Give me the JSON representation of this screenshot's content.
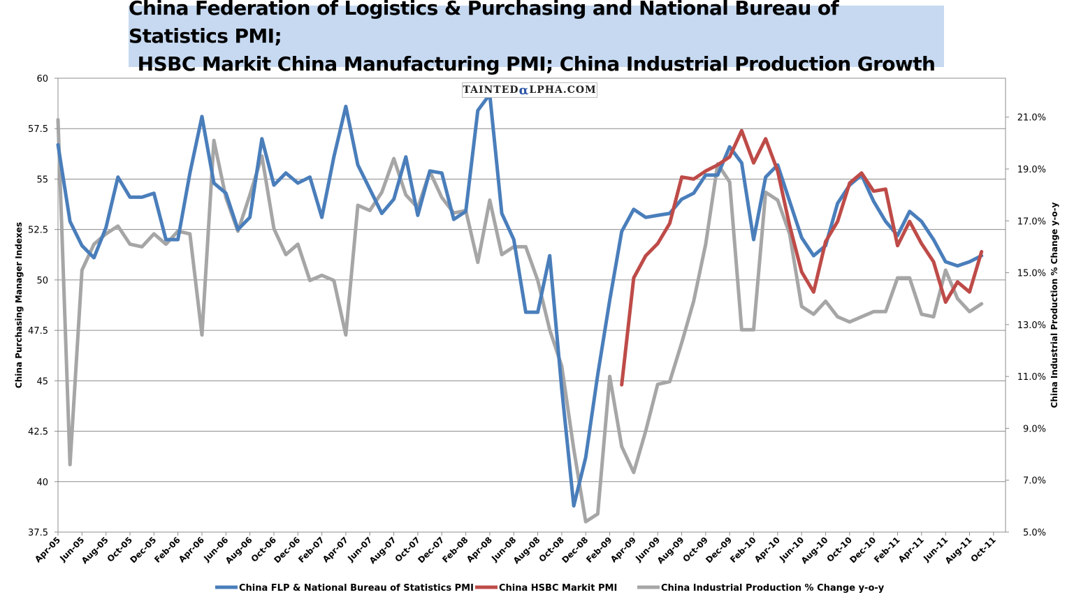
{
  "title_lines": [
    "China Federation of Logistics & Purchasing and National Bureau of Statistics PMI;",
    "HSBC Markit China Manufacturing PMI; China Industrial Production Growth"
  ],
  "watermark": {
    "prefix": "TAINTED",
    "alpha": "α",
    "suffix": "LPHA.COM"
  },
  "chart_data": {
    "type": "line",
    "title": "China Federation of Logistics & Purchasing and National Bureau of Statistics PMI; HSBC Markit China Manufacturing PMI; China Industrial Production Growth",
    "ylabel": "China Purchasing Manager Indexes",
    "y2label": "China Industrial Production % Change y-o-y",
    "ylim": [
      37.5,
      60
    ],
    "y2lim": [
      5.0,
      22.5
    ],
    "yticks": [
      "37.5",
      "40",
      "42.5",
      "45",
      "47.5",
      "50",
      "52.5",
      "55",
      "57.5",
      "60"
    ],
    "y2ticks": [
      "5.0%",
      "7.0%",
      "9.0%",
      "11.0%",
      "13.0%",
      "15.0%",
      "17.0%",
      "19.0%",
      "21.0%"
    ],
    "months": [
      "Apr-05",
      "May-05",
      "Jun-05",
      "Jul-05",
      "Aug-05",
      "Sep-05",
      "Oct-05",
      "Nov-05",
      "Dec-05",
      "Jan-06",
      "Feb-06",
      "Mar-06",
      "Apr-06",
      "May-06",
      "Jun-06",
      "Jul-06",
      "Aug-06",
      "Sep-06",
      "Oct-06",
      "Nov-06",
      "Dec-06",
      "Jan-07",
      "Feb-07",
      "Mar-07",
      "Apr-07",
      "May-07",
      "Jun-07",
      "Jul-07",
      "Aug-07",
      "Sep-07",
      "Oct-07",
      "Nov-07",
      "Dec-07",
      "Jan-08",
      "Feb-08",
      "Mar-08",
      "Apr-08",
      "May-08",
      "Jun-08",
      "Jul-08",
      "Aug-08",
      "Sep-08",
      "Oct-08",
      "Nov-08",
      "Dec-08",
      "Jan-09",
      "Feb-09",
      "Mar-09",
      "Apr-09",
      "May-09",
      "Jun-09",
      "Jul-09",
      "Aug-09",
      "Sep-09",
      "Oct-09",
      "Nov-09",
      "Dec-09",
      "Jan-10",
      "Feb-10",
      "Mar-10",
      "Apr-10",
      "May-10",
      "Jun-10",
      "Jul-10",
      "Aug-10",
      "Sep-10",
      "Oct-10",
      "Nov-10",
      "Dec-10",
      "Jan-11",
      "Feb-11",
      "Mar-11",
      "Apr-11",
      "May-11",
      "Jun-11",
      "Jul-11",
      "Aug-11",
      "Sep-11",
      "Oct-11",
      "Nov-11"
    ],
    "xtick_labels": [
      "Apr-05",
      "Jun-05",
      "Aug-05",
      "Oct-05",
      "Dec-05",
      "Feb-06",
      "Apr-06",
      "Jun-06",
      "Aug-06",
      "Oct-06",
      "Dec-06",
      "Feb-07",
      "Apr-07",
      "Jun-07",
      "Aug-07",
      "Oct-07",
      "Dec-07",
      "Feb-08",
      "Apr-08",
      "Jun-08",
      "Aug-08",
      "Oct-08",
      "Dec-08",
      "Feb-09",
      "Apr-09",
      "Jun-09",
      "Aug-09",
      "Oct-09",
      "Dec-09",
      "Feb-10",
      "Apr-10",
      "Jun-10",
      "Aug-10",
      "Oct-10",
      "Dec-10",
      "Feb-11",
      "Apr-11",
      "Jun-11",
      "Aug-11",
      "Oct-11"
    ],
    "grid": "horizontal",
    "legend_position": "bottom",
    "series": [
      {
        "name": "China FLP & National Bureau of Statistics PMI",
        "color": "#4a7ebb",
        "axis": "left",
        "start": "Apr-05",
        "values": [
          56.7,
          52.9,
          51.7,
          51.1,
          52.6,
          55.1,
          54.1,
          54.1,
          54.3,
          52.0,
          52.0,
          55.3,
          58.1,
          54.8,
          54.3,
          52.5,
          53.1,
          57.0,
          54.7,
          55.3,
          54.8,
          55.1,
          53.1,
          56.1,
          58.6,
          55.7,
          54.5,
          53.3,
          54.0,
          56.1,
          53.2,
          55.4,
          55.3,
          53.0,
          53.4,
          58.4,
          59.2,
          53.3,
          52.0,
          48.4,
          48.4,
          51.2,
          44.6,
          38.8,
          41.2,
          45.3,
          49.0,
          52.4,
          53.5,
          53.1,
          53.2,
          53.3,
          54.0,
          54.3,
          55.2,
          55.2,
          56.6,
          55.8,
          52.0,
          55.1,
          55.7,
          53.9,
          52.1,
          51.2,
          51.7,
          53.8,
          54.7,
          55.2,
          53.9,
          52.9,
          52.2,
          53.4,
          52.9,
          52.0,
          50.9,
          50.7,
          50.9,
          51.2
        ]
      },
      {
        "name": "China HSBC  Markit PMI",
        "color": "#be4b48",
        "axis": "left",
        "start": "Mar-09",
        "values": [
          44.8,
          50.1,
          51.2,
          51.8,
          52.8,
          55.1,
          55.0,
          55.4,
          55.7,
          56.1,
          57.4,
          55.8,
          57.0,
          55.4,
          52.7,
          50.4,
          49.4,
          51.9,
          52.9,
          54.8,
          55.3,
          54.4,
          54.5,
          51.7,
          52.9,
          51.8,
          50.9,
          48.9,
          49.9,
          49.4,
          51.4
        ]
      },
      {
        "name": "China Industrial Production % Change y-o-y",
        "color": "#a6a6a6",
        "axis": "right",
        "start": "Apr-05",
        "values": [
          20.9,
          7.6,
          15.1,
          16.1,
          16.5,
          16.8,
          16.1,
          16.0,
          16.5,
          16.1,
          16.6,
          16.5,
          12.6,
          20.1,
          17.9,
          16.6,
          18.0,
          19.5,
          16.7,
          15.7,
          16.1,
          14.7,
          14.9,
          14.7,
          12.6,
          17.6,
          17.4,
          18.1,
          19.4,
          18.0,
          17.5,
          18.9,
          17.9,
          17.3,
          17.4,
          15.4,
          17.8,
          15.7,
          16.0,
          16.0,
          14.7,
          12.8,
          11.4,
          8.2,
          5.4,
          5.7,
          11.0,
          8.3,
          7.3,
          8.9,
          10.7,
          10.8,
          12.3,
          13.9,
          16.1,
          19.2,
          18.5,
          12.8,
          12.8,
          18.1,
          17.8,
          16.5,
          13.7,
          13.4,
          13.9,
          13.3,
          13.1,
          13.3,
          13.5,
          13.5,
          14.8,
          14.8,
          13.4,
          13.3,
          15.1,
          14.0,
          13.5,
          13.8
        ]
      }
    ]
  }
}
